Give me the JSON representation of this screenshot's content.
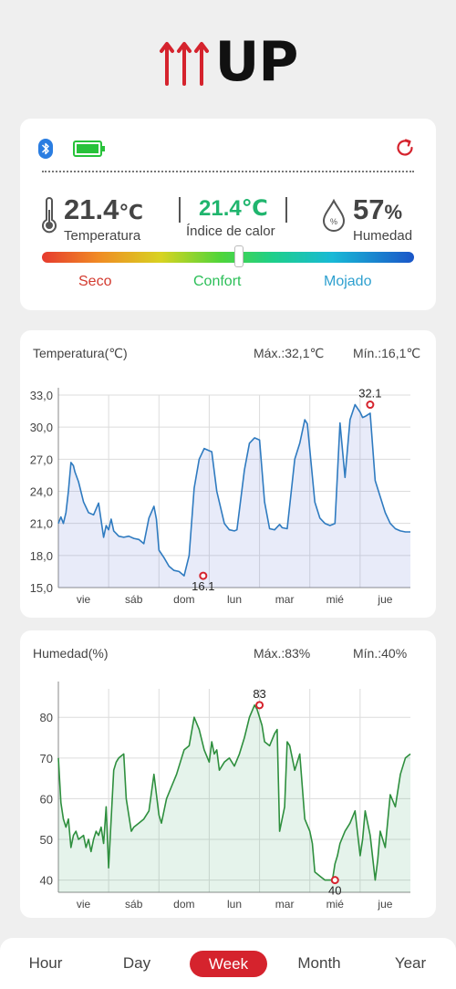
{
  "logo": {
    "text": "UP",
    "color_accent": "#d5232d"
  },
  "status": {
    "bluetooth_icon": "bluetooth-icon",
    "battery_icon": "battery-full-icon",
    "refresh_icon": "refresh-icon",
    "temperature": {
      "value": "21.4",
      "unit": "℃",
      "label": "Temperatura"
    },
    "heat_index": {
      "value": "21.4℃",
      "label": "Índice de calor"
    },
    "humidity": {
      "value": "57",
      "unit": "%",
      "label": "Humedad"
    },
    "comfort_level": 0.53,
    "levels": {
      "dry": "Seco",
      "comfort": "Confort",
      "wet": "Mojado"
    }
  },
  "temp_chart": {
    "title": "Temperatura(℃)",
    "max_label": "Máx.:32,1℃",
    "min_label": "Mín.:16,1℃",
    "max_point": "32.1",
    "min_point": "16.1"
  },
  "hum_chart": {
    "title": "Humedad(%)",
    "max_label": "Máx.:83%",
    "min_label": "Mín.:40%",
    "max_point": "83",
    "min_point": "40"
  },
  "chart_data": [
    {
      "type": "area",
      "title": "Temperatura(℃)",
      "color": "#2f7bc0",
      "ylim": [
        15,
        33
      ],
      "yticks": [
        "15,0",
        "18,0",
        "21,0",
        "24,0",
        "27,0",
        "30,0",
        "33,0"
      ],
      "ytick_values": [
        15,
        18,
        21,
        24,
        27,
        30,
        33
      ],
      "xticks": [
        "vie",
        "sáb",
        "dom",
        "lun",
        "mar",
        "mié",
        "jue"
      ],
      "xtick_positions": [
        0.5,
        1.5,
        2.5,
        3.5,
        4.5,
        5.5,
        6.5
      ],
      "grid": true,
      "max": {
        "x": 6.2,
        "y": 32.1,
        "label": "32.1"
      },
      "min": {
        "x": 2.88,
        "y": 16.1,
        "label": "16.1"
      },
      "x": [
        0,
        0.05,
        0.1,
        0.15,
        0.2,
        0.25,
        0.3,
        0.33,
        0.4,
        0.5,
        0.6,
        0.7,
        0.8,
        0.9,
        0.95,
        1.0,
        1.05,
        1.1,
        1.2,
        1.3,
        1.4,
        1.5,
        1.6,
        1.7,
        1.8,
        1.9,
        1.95,
        2.0,
        2.1,
        2.2,
        2.3,
        2.4,
        2.5,
        2.6,
        2.7,
        2.8,
        2.9,
        3.0,
        3.05,
        3.15,
        3.3,
        3.4,
        3.5,
        3.55,
        3.7,
        3.8,
        3.9,
        4.0,
        4.1,
        4.2,
        4.3,
        4.4,
        4.45,
        4.55,
        4.7,
        4.8,
        4.9,
        4.95,
        5.1,
        5.2,
        5.3,
        5.4,
        5.5,
        5.6,
        5.7,
        5.8,
        5.9,
        6.0,
        6.05,
        6.1,
        6.2,
        6.3,
        6.4,
        6.5,
        6.6,
        6.7,
        6.8,
        6.9,
        7.0
      ],
      "values": [
        21.0,
        21.6,
        21.0,
        22.0,
        24.0,
        26.7,
        26.4,
        25.8,
        24.9,
        23.0,
        22.0,
        21.8,
        22.9,
        19.7,
        20.8,
        20.4,
        21.4,
        20.3,
        19.8,
        19.7,
        19.8,
        19.6,
        19.5,
        19.1,
        21.5,
        22.6,
        21.4,
        18.5,
        17.8,
        17.0,
        16.6,
        16.5,
        16.1,
        18.0,
        24.3,
        27.0,
        28.0,
        27.8,
        27.7,
        24.0,
        21.0,
        20.4,
        20.3,
        20.4,
        26.0,
        28.5,
        29.0,
        28.8,
        23.0,
        20.5,
        20.4,
        20.9,
        20.6,
        20.5,
        27.0,
        28.5,
        30.7,
        30.3,
        23.0,
        21.5,
        21.0,
        20.8,
        21.0,
        30.4,
        25.3,
        30.7,
        32.1,
        31.4,
        30.9,
        31.0,
        31.3,
        25.0,
        23.5,
        22.0,
        21.0,
        20.5,
        20.3,
        20.2,
        20.2
      ]
    },
    {
      "type": "area",
      "title": "Humedad(%)",
      "color": "#2e8f3e",
      "ylim": [
        37,
        87
      ],
      "yticks": [
        "40",
        "50",
        "60",
        "70",
        "80"
      ],
      "ytick_values": [
        40,
        50,
        60,
        70,
        80
      ],
      "xticks": [
        "vie",
        "sáb",
        "dom",
        "lun",
        "mar",
        "mié",
        "jue"
      ],
      "xtick_positions": [
        0.5,
        1.5,
        2.5,
        3.5,
        4.5,
        5.5,
        6.5
      ],
      "grid": true,
      "max": {
        "x": 4.0,
        "y": 83,
        "label": "83"
      },
      "min": {
        "x": 5.5,
        "y": 40,
        "label": "40"
      },
      "x": [
        0,
        0.05,
        0.1,
        0.15,
        0.2,
        0.25,
        0.3,
        0.35,
        0.4,
        0.5,
        0.55,
        0.6,
        0.65,
        0.7,
        0.75,
        0.8,
        0.85,
        0.9,
        0.95,
        1.0,
        1.05,
        1.1,
        1.15,
        1.2,
        1.3,
        1.35,
        1.4,
        1.45,
        1.5,
        1.6,
        1.7,
        1.8,
        1.9,
        2.0,
        2.05,
        2.15,
        2.25,
        2.35,
        2.45,
        2.5,
        2.6,
        2.7,
        2.8,
        2.9,
        3.0,
        3.05,
        3.1,
        3.15,
        3.2,
        3.3,
        3.4,
        3.5,
        3.6,
        3.7,
        3.8,
        3.9,
        3.95,
        4.0,
        4.05,
        4.1,
        4.2,
        4.3,
        4.35,
        4.4,
        4.5,
        4.55,
        4.6,
        4.7,
        4.8,
        4.9,
        5.0,
        5.05,
        5.1,
        5.2,
        5.3,
        5.4,
        5.45,
        5.5,
        5.55,
        5.6,
        5.7,
        5.8,
        5.9,
        6.0,
        6.05,
        6.1,
        6.2,
        6.3,
        6.35,
        6.4,
        6.5,
        6.6,
        6.7,
        6.8,
        6.9,
        7.0
      ],
      "values": [
        70,
        59,
        55,
        53,
        55,
        48,
        51,
        52,
        50,
        51,
        48,
        50,
        47,
        50,
        52,
        51,
        53,
        49,
        58,
        43,
        55,
        67,
        69,
        70,
        71,
        60,
        56,
        52,
        53,
        54,
        55,
        57,
        66,
        56,
        54,
        60,
        63,
        66,
        70,
        72,
        73,
        80,
        77,
        72,
        69,
        74,
        71,
        72,
        67,
        69,
        70,
        68,
        71,
        75,
        80,
        83,
        82,
        80,
        78,
        74,
        73,
        76,
        77,
        52,
        58,
        74,
        73,
        67,
        71,
        55,
        52,
        49,
        42,
        41,
        40,
        40,
        40,
        44,
        46,
        49,
        52,
        54,
        57,
        46,
        50,
        57,
        51,
        40,
        45,
        52,
        48,
        61,
        58,
        66,
        70,
        71
      ]
    }
  ],
  "tabs": [
    {
      "label": "Hour",
      "active": false
    },
    {
      "label": "Day",
      "active": false
    },
    {
      "label": "Week",
      "active": true
    },
    {
      "label": "Month",
      "active": false
    },
    {
      "label": "Year",
      "active": false
    }
  ]
}
